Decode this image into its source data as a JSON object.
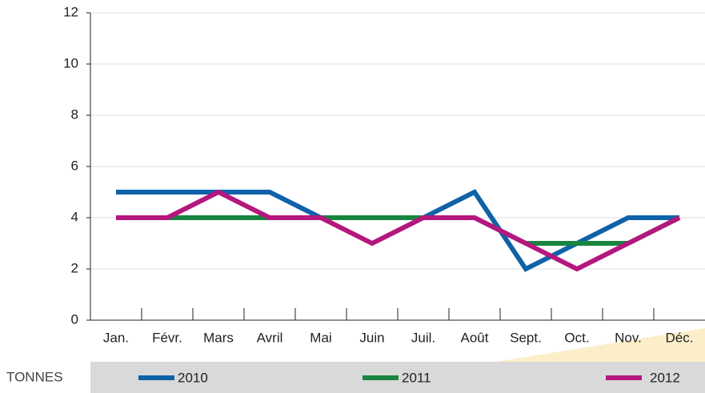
{
  "chart_data": {
    "type": "line",
    "unit_label": "TONNES",
    "categories": [
      "Jan.",
      "Févr.",
      "Mars",
      "Avril",
      "Mai",
      "Juin",
      "Juil.",
      "Août",
      "Sept.",
      "Oct.",
      "Nov.",
      "Déc."
    ],
    "series": [
      {
        "name": "2010",
        "color": "#0f62a8",
        "values": [
          5,
          5,
          5,
          5,
          4,
          4,
          4,
          5,
          2,
          3,
          4,
          4
        ]
      },
      {
        "name": "2011",
        "color": "#18843f",
        "values": [
          4,
          4,
          4,
          4,
          4,
          4,
          4,
          4,
          3,
          3,
          3,
          4
        ]
      },
      {
        "name": "2012",
        "color": "#b5177f",
        "values": [
          4,
          4,
          5,
          4,
          4,
          3,
          4,
          4,
          3,
          2,
          3,
          4
        ]
      }
    ],
    "ylim": [
      0,
      12
    ],
    "yticks": [
      0,
      2,
      4,
      6,
      8,
      10,
      12
    ],
    "grid": true
  }
}
